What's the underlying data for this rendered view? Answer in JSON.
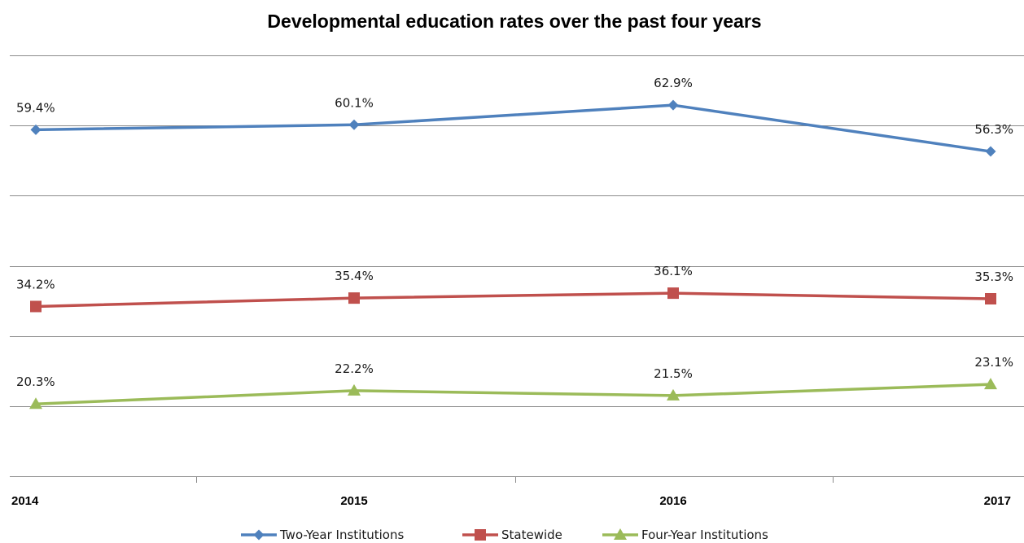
{
  "chart_data": {
    "type": "line",
    "title": "Developmental education rates over the past four years",
    "categories": [
      "2014",
      "2015",
      "2016",
      "2017"
    ],
    "ylim": [
      10,
      70
    ],
    "ygrid_step": 10,
    "grid": true,
    "legend_position": "bottom",
    "series": [
      {
        "name": "Two-Year Institutions",
        "values": [
          59.4,
          60.1,
          62.9,
          56.3
        ],
        "labels": [
          "59.4%",
          "60.1%",
          "62.9%",
          "56.3%"
        ],
        "color": "#4f81bd",
        "marker": "diamond"
      },
      {
        "name": "Statewide",
        "values": [
          34.2,
          35.4,
          36.1,
          35.3
        ],
        "labels": [
          "34.2%",
          "35.4%",
          "36.1%",
          "35.3%"
        ],
        "color": "#c0504d",
        "marker": "square"
      },
      {
        "name": "Four-Year Institutions",
        "values": [
          20.3,
          22.2,
          21.5,
          23.1
        ],
        "labels": [
          "20.3%",
          "22.2%",
          "21.5%",
          "23.1%"
        ],
        "color": "#9bbb59",
        "marker": "triangle"
      }
    ]
  }
}
